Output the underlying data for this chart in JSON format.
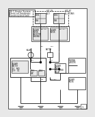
{
  "bg_color": "#e8e8e8",
  "line_color": "#111111",
  "white": "#ffffff",
  "title": "96 C-Heater System\nElectrical Schematic"
}
